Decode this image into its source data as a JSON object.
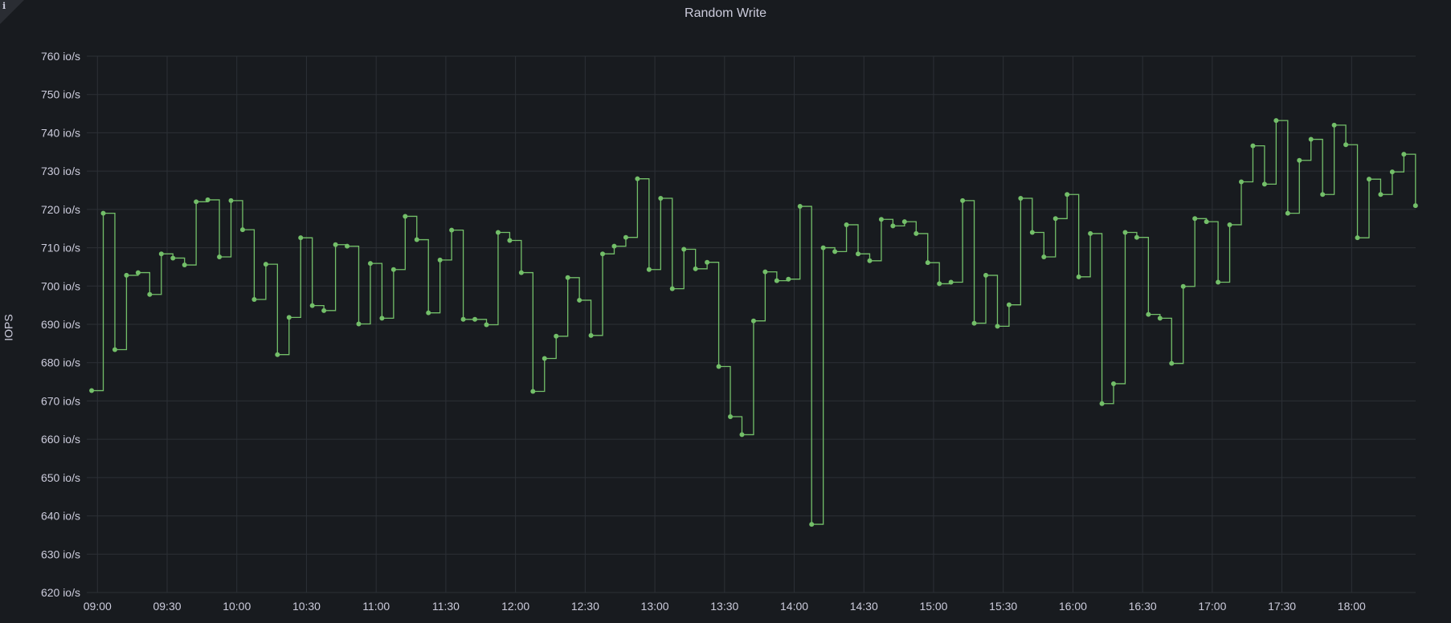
{
  "chart_data": {
    "type": "line",
    "style": "step-after with point markers",
    "title": "Random Write",
    "xlabel": "",
    "ylabel": "IOPS",
    "unit": "io/s",
    "ylim": [
      620,
      760
    ],
    "xlim": [
      "08:55:24",
      "18:27:34"
    ],
    "grid": true,
    "legend": "none",
    "y_ticks": [
      "620 io/s",
      "630 io/s",
      "640 io/s",
      "650 io/s",
      "660 io/s",
      "670 io/s",
      "680 io/s",
      "690 io/s",
      "700 io/s",
      "710 io/s",
      "720 io/s",
      "730 io/s",
      "740 io/s",
      "750 io/s",
      "760 io/s"
    ],
    "x_ticks": [
      "09:00",
      "09:30",
      "10:00",
      "10:30",
      "11:00",
      "11:30",
      "12:00",
      "12:30",
      "13:00",
      "13:30",
      "14:00",
      "14:30",
      "15:00",
      "15:30",
      "16:00",
      "16:30",
      "17:00",
      "17:30",
      "18:00"
    ],
    "colors": {
      "series": "#73bf69",
      "background": "#181b1f",
      "grid": "#2c3036"
    },
    "series": [
      {
        "x": [
          "08:57:30",
          "09:02:30",
          "09:07:30",
          "09:12:30",
          "09:17:30",
          "09:22:30",
          "09:27:30",
          "09:32:30",
          "09:37:30",
          "09:42:30",
          "09:47:30",
          "09:52:30",
          "09:57:30",
          "10:02:30",
          "10:07:30",
          "10:12:30",
          "10:17:30",
          "10:22:30",
          "10:27:30",
          "10:32:30",
          "10:37:30",
          "10:42:30",
          "10:47:30",
          "10:52:30",
          "10:57:30",
          "11:02:30",
          "11:07:30",
          "11:12:30",
          "11:17:30",
          "11:22:30",
          "11:27:30",
          "11:32:30",
          "11:37:30",
          "11:42:30",
          "11:47:30",
          "11:52:30",
          "11:57:30",
          "12:02:30",
          "12:07:30",
          "12:12:30",
          "12:17:30",
          "12:22:30",
          "12:27:30",
          "12:32:30",
          "12:37:30",
          "12:42:30",
          "12:47:30",
          "12:52:30",
          "12:57:30",
          "13:02:30",
          "13:07:30",
          "13:12:30",
          "13:17:30",
          "13:22:30",
          "13:27:30",
          "13:32:30",
          "13:37:30",
          "13:42:30",
          "13:47:30",
          "13:52:30",
          "13:57:30",
          "14:02:30",
          "14:07:30",
          "14:12:30",
          "14:17:30",
          "14:22:30",
          "14:27:30",
          "14:32:30",
          "14:37:30",
          "14:42:30",
          "14:47:30",
          "14:52:30",
          "14:57:30",
          "15:02:30",
          "15:07:30",
          "15:12:30",
          "15:17:30",
          "15:22:30",
          "15:27:30",
          "15:32:30",
          "15:37:30",
          "15:42:30",
          "15:47:30",
          "15:52:30",
          "15:57:30",
          "16:02:30",
          "16:07:30",
          "16:12:30",
          "16:17:30",
          "16:22:30",
          "16:27:30",
          "16:32:30",
          "16:37:30",
          "16:42:30",
          "16:47:30",
          "16:52:30",
          "16:57:30",
          "17:02:30",
          "17:07:30",
          "17:12:30",
          "17:17:30",
          "17:22:30",
          "17:27:30",
          "17:32:30",
          "17:37:30",
          "17:42:30",
          "17:47:30",
          "17:52:30",
          "17:57:30",
          "18:02:30",
          "18:07:30",
          "18:12:30",
          "18:17:30",
          "18:22:30",
          "18:27:30"
        ],
        "values": [
          672.7,
          719.0,
          683.4,
          702.8,
          703.5,
          697.8,
          708.4,
          707.3,
          705.5,
          722.0,
          722.5,
          707.6,
          722.3,
          714.7,
          696.5,
          705.7,
          682.1,
          691.8,
          712.6,
          694.9,
          693.6,
          710.8,
          710.4,
          690.1,
          705.9,
          691.6,
          704.3,
          718.2,
          712.1,
          693.0,
          706.8,
          714.6,
          691.3,
          691.3,
          689.9,
          714.0,
          711.9,
          703.5,
          672.5,
          681.1,
          686.9,
          702.2,
          696.3,
          687.1,
          708.4,
          710.4,
          712.7,
          728.0,
          704.3,
          722.9,
          699.3,
          709.6,
          704.5,
          706.2,
          679.0,
          665.9,
          661.2,
          690.9,
          703.7,
          701.4,
          701.8,
          720.8,
          637.8,
          710.0,
          709.0,
          716.0,
          708.4,
          706.6,
          717.4,
          715.7,
          716.8,
          713.7,
          706.1,
          700.6,
          701.0,
          722.3,
          690.3,
          702.8,
          689.5,
          695.1,
          722.9,
          714.0,
          707.6,
          717.6,
          723.9,
          702.4,
          713.7,
          669.3,
          674.5,
          714.0,
          712.7,
          692.6,
          691.6,
          679.8,
          699.9,
          717.6,
          716.8,
          701.0,
          716.0,
          727.2,
          736.6,
          726.6,
          743.2,
          719.0,
          732.8,
          738.3,
          723.9,
          742.0,
          736.9,
          712.6,
          727.9,
          723.9,
          729.8,
          734.4,
          721.0
        ]
      }
    ]
  }
}
